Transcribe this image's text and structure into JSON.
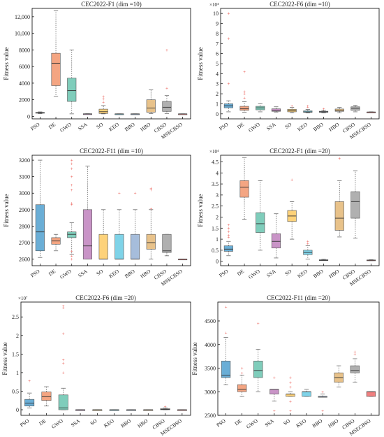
{
  "colors": {
    "PSO": "#6aaed6",
    "DE": "#f4a582",
    "GWO": "#7fcdbb",
    "SSA": "#c994c7",
    "SO": "#fdd27a",
    "KEO": "#7fd3e8",
    "BBO": "#a6bddb",
    "HBO": "#e8c28a",
    "CBSO": "#b0b0b0",
    "MSECBSO": "#f08080",
    "outlier": "#e8453c",
    "median": "#333333"
  },
  "chart_data": [
    {
      "type": "box",
      "title": "CEC2022-F1 (dim =10)",
      "ylabel": "Fitness value",
      "categories": [
        "PSO",
        "DE",
        "GWO",
        "SSA",
        "SO",
        "KEO",
        "BBO",
        "HBO",
        "CBSO",
        "MSECBSO"
      ],
      "ylim": [
        -300,
        13000
      ],
      "yticks": [
        0,
        2000,
        4000,
        6000,
        8000,
        10000,
        12000
      ],
      "ytick_labels": [
        "0",
        "2000",
        "4000",
        "6000",
        "8000",
        "10,000",
        "12,000"
      ],
      "exponent": "",
      "boxes": [
        {
          "whislo": 330,
          "q1": 380,
          "med": 420,
          "q3": 480,
          "whishi": 540,
          "fliers": []
        },
        {
          "whislo": 2400,
          "q1": 3700,
          "med": 6400,
          "q3": 7600,
          "whishi": 12700,
          "fliers": []
        },
        {
          "whislo": 300,
          "q1": 1800,
          "med": 3100,
          "q3": 4600,
          "whishi": 8000,
          "fliers": []
        },
        {
          "whislo": 290,
          "q1": 300,
          "med": 300,
          "q3": 310,
          "whishi": 320,
          "fliers": []
        },
        {
          "whislo": 300,
          "q1": 350,
          "med": 560,
          "q3": 870,
          "whishi": 1300,
          "fliers": [
            1700,
            2100,
            2400
          ]
        },
        {
          "whislo": 290,
          "q1": 300,
          "med": 300,
          "q3": 300,
          "whishi": 310,
          "fliers": []
        },
        {
          "whislo": 290,
          "q1": 300,
          "med": 300,
          "q3": 300,
          "whishi": 310,
          "fliers": []
        },
        {
          "whislo": 320,
          "q1": 500,
          "med": 1000,
          "q3": 2000,
          "whishi": 3200,
          "fliers": []
        },
        {
          "whislo": 350,
          "q1": 600,
          "med": 1100,
          "q3": 1800,
          "whishi": 2500,
          "fliers": [
            3400,
            8000
          ]
        },
        {
          "whislo": 290,
          "q1": 300,
          "med": 300,
          "q3": 300,
          "whishi": 310,
          "fliers": []
        }
      ]
    },
    {
      "type": "box",
      "title": "CEC2022-F6 (dim =10)",
      "ylabel": "Fitness value",
      "categories": [
        "PSO",
        "DE",
        "GWO",
        "SSA",
        "SO",
        "KEO",
        "BBO",
        "HBO",
        "CBSO",
        "MSECBSO"
      ],
      "ylim": [
        -5000,
        105000
      ],
      "yticks": [
        0,
        10000,
        20000,
        30000,
        40000,
        50000,
        60000,
        70000,
        80000,
        90000,
        100000
      ],
      "ytick_labels": [
        "0",
        "1",
        "2",
        "3",
        "4",
        "5",
        "6",
        "7",
        "8",
        "9",
        "10"
      ],
      "exponent": "×10⁴",
      "boxes": [
        {
          "whislo": 2000,
          "q1": 6000,
          "med": 8000,
          "q3": 10000,
          "whishi": 13000,
          "fliers": [
            30000,
            75000,
            100000
          ]
        },
        {
          "whislo": 1500,
          "q1": 3500,
          "med": 5000,
          "q3": 7500,
          "whishi": 12000,
          "fliers": [
            16000,
            20000,
            22000,
            42000
          ]
        },
        {
          "whislo": 2000,
          "q1": 4000,
          "med": 6000,
          "q3": 7500,
          "whishi": 10000,
          "fliers": []
        },
        {
          "whislo": 1800,
          "q1": 2500,
          "med": 3500,
          "q3": 5000,
          "whishi": 7000,
          "fliers": []
        },
        {
          "whislo": 1200,
          "q1": 2000,
          "med": 3000,
          "q3": 4500,
          "whishi": 6500,
          "fliers": [
            8000
          ]
        },
        {
          "whislo": 900,
          "q1": 1500,
          "med": 2000,
          "q3": 3000,
          "whishi": 4500,
          "fliers": [
            7000,
            8000
          ]
        },
        {
          "whislo": 1000,
          "q1": 1500,
          "med": 2000,
          "q3": 2600,
          "whishi": 3500,
          "fliers": [
            5000
          ]
        },
        {
          "whislo": 1200,
          "q1": 2500,
          "med": 3500,
          "q3": 4800,
          "whishi": 6500,
          "fliers": []
        },
        {
          "whislo": 2000,
          "q1": 3500,
          "med": 5500,
          "q3": 7000,
          "whishi": 8500,
          "fliers": []
        },
        {
          "whislo": 1500,
          "q1": 1800,
          "med": 1800,
          "q3": 1800,
          "whishi": 2000,
          "fliers": []
        }
      ]
    },
    {
      "type": "box",
      "title": "CEC2022-F11 (dim =10)",
      "ylabel": "Fitness value",
      "categories": [
        "PSO",
        "DE",
        "GWO",
        "SSA",
        "SO",
        "KEO",
        "BBO",
        "HBO",
        "CBSO",
        "MSECBSO"
      ],
      "ylim": [
        2560,
        3230
      ],
      "yticks": [
        2600,
        2700,
        2800,
        2900,
        3000,
        3100,
        3200
      ],
      "ytick_labels": [
        "2600",
        "2700",
        "2800",
        "2900",
        "3000",
        "3100",
        "3200"
      ],
      "exponent": "",
      "boxes": [
        {
          "whislo": 2610,
          "q1": 2650,
          "med": 2765,
          "q3": 2930,
          "whishi": 3200,
          "fliers": []
        },
        {
          "whislo": 2650,
          "q1": 2690,
          "med": 2710,
          "q3": 2730,
          "whishi": 2750,
          "fliers": []
        },
        {
          "whislo": 2630,
          "q1": 2730,
          "med": 2750,
          "q3": 2765,
          "whishi": 2820,
          "fliers": [
            2600,
            2620,
            2650,
            2930,
            2940,
            3020,
            3050,
            3100,
            3150,
            3180,
            3200
          ]
        },
        {
          "whislo": 2600,
          "q1": 2600,
          "med": 2680,
          "q3": 2900,
          "whishi": 3165,
          "fliers": []
        },
        {
          "whislo": 2600,
          "q1": 2600,
          "med": 2600,
          "q3": 2750,
          "whishi": 2900,
          "fliers": []
        },
        {
          "whislo": 2600,
          "q1": 2600,
          "med": 2600,
          "q3": 2750,
          "whishi": 2900,
          "fliers": [
            3000
          ]
        },
        {
          "whislo": 2600,
          "q1": 2600,
          "med": 2600,
          "q3": 2750,
          "whishi": 2900,
          "fliers": [
            3000
          ]
        },
        {
          "whislo": 2600,
          "q1": 2660,
          "med": 2700,
          "q3": 2750,
          "whishi": 2900,
          "fliers": [
            2905,
            3020,
            3030
          ]
        },
        {
          "whislo": 2620,
          "q1": 2640,
          "med": 2650,
          "q3": 2750,
          "whishi": 2750,
          "fliers": []
        },
        {
          "whislo": 2600,
          "q1": 2600,
          "med": 2600,
          "q3": 2600,
          "whishi": 2600,
          "fliers": []
        }
      ]
    },
    {
      "type": "box",
      "title": "CEC2022-F1 (dim =20)",
      "ylabel": "Fitness value",
      "categories": [
        "PSO",
        "DE",
        "GWO",
        "SSA",
        "SO",
        "KEO",
        "BBO",
        "HBO",
        "CBSO",
        "MSECBSO"
      ],
      "ylim": [
        -2000,
        48000
      ],
      "yticks": [
        0,
        5000,
        10000,
        15000,
        20000,
        25000,
        30000,
        35000,
        40000,
        45000
      ],
      "ytick_labels": [
        "0",
        "0.5",
        "1",
        "1.5",
        "2",
        "2.5",
        "3",
        "3.5",
        "4",
        "4.5"
      ],
      "exponent": "×10⁴",
      "boxes": [
        {
          "whislo": 2500,
          "q1": 4500,
          "med": 5500,
          "q3": 7000,
          "whishi": 9000,
          "fliers": [
            11000,
            12000,
            13500,
            15000,
            16500
          ]
        },
        {
          "whislo": 19000,
          "q1": 29000,
          "med": 33500,
          "q3": 36500,
          "whishi": 47000,
          "fliers": []
        },
        {
          "whislo": 5000,
          "q1": 13000,
          "med": 17000,
          "q3": 22000,
          "whishi": 36500,
          "fliers": []
        },
        {
          "whislo": 1500,
          "q1": 6000,
          "med": 9000,
          "q3": 12500,
          "whishi": 21500,
          "fliers": []
        },
        {
          "whislo": 10000,
          "q1": 18000,
          "med": 20500,
          "q3": 23000,
          "whishi": 27000,
          "fliers": [
            37000
          ]
        },
        {
          "whislo": 1000,
          "q1": 3000,
          "med": 4000,
          "q3": 5000,
          "whishi": 7000,
          "fliers": [
            8000,
            9000
          ]
        },
        {
          "whislo": 300,
          "q1": 400,
          "med": 500,
          "q3": 700,
          "whishi": 900,
          "fliers": []
        },
        {
          "whislo": 11000,
          "q1": 14000,
          "med": 19500,
          "q3": 27000,
          "whishi": 36500,
          "fliers": [
            46500
          ]
        },
        {
          "whislo": 10500,
          "q1": 19500,
          "med": 27000,
          "q3": 31500,
          "whishi": 41000,
          "fliers": []
        },
        {
          "whislo": 300,
          "q1": 400,
          "med": 500,
          "q3": 600,
          "whishi": 700,
          "fliers": []
        }
      ]
    },
    {
      "type": "box",
      "title": "CEC2022-F6 (dim =20)",
      "ylabel": "Fitness value",
      "categories": [
        "PSO",
        "DE",
        "GWO",
        "SSA",
        "SO",
        "KEO",
        "BBO",
        "HBO",
        "CBSO",
        "MSECBSO"
      ],
      "ylim": [
        -1500000,
        29000000
      ],
      "yticks": [
        0,
        5000000,
        10000000,
        15000000,
        20000000,
        25000000
      ],
      "ytick_labels": [
        "0",
        "0.5",
        "1",
        "1.5",
        "2",
        "2.5"
      ],
      "exponent": "×10⁷",
      "boxes": [
        {
          "whislo": 500000,
          "q1": 1000000,
          "med": 1800000,
          "q3": 2800000,
          "whishi": 4500000,
          "fliers": [
            7800000
          ]
        },
        {
          "whislo": 1000000,
          "q1": 2500000,
          "med": 3500000,
          "q3": 4800000,
          "whishi": 6200000,
          "fliers": []
        },
        {
          "whislo": 0,
          "q1": 0,
          "med": 500000,
          "q3": 4000000,
          "whishi": 5800000,
          "fliers": [
            10000000,
            12500000,
            13500000,
            20500000,
            27500000,
            28000000
          ]
        },
        {
          "whislo": 0,
          "q1": 0,
          "med": 0,
          "q3": 0,
          "whishi": 0,
          "fliers": []
        },
        {
          "whislo": 0,
          "q1": 0,
          "med": 0,
          "q3": 0,
          "whishi": 0,
          "fliers": []
        },
        {
          "whislo": 0,
          "q1": 0,
          "med": 0,
          "q3": 0,
          "whishi": 0,
          "fliers": []
        },
        {
          "whislo": 0,
          "q1": 0,
          "med": 0,
          "q3": 0,
          "whishi": 0,
          "fliers": []
        },
        {
          "whislo": 0,
          "q1": 0,
          "med": 0,
          "q3": 0,
          "whishi": 0,
          "fliers": []
        },
        {
          "whislo": 0,
          "q1": 0,
          "med": 100000,
          "q3": 300000,
          "whishi": 500000,
          "fliers": [
            900000
          ]
        },
        {
          "whislo": 0,
          "q1": 0,
          "med": 0,
          "q3": 0,
          "whishi": 0,
          "fliers": []
        }
      ]
    },
    {
      "type": "box",
      "title": "CEC2022-F11 (dim =20)",
      "ylabel": "Fitness value",
      "categories": [
        "PSO",
        "DE",
        "GWO",
        "SSA",
        "SO",
        "KEO",
        "BBO",
        "HBO",
        "CBSO",
        "MSECBSO"
      ],
      "ylim": [
        2500,
        4900
      ],
      "yticks": [
        2500,
        3000,
        3500,
        4000,
        4500
      ],
      "ytick_labels": [
        "2500",
        "3000",
        "3500",
        "4000",
        "4500"
      ],
      "exponent": "",
      "boxes": [
        {
          "whislo": 3150,
          "q1": 3300,
          "med": 3350,
          "q3": 3650,
          "whishi": 4150,
          "fliers": [
            4250,
            4800
          ]
        },
        {
          "whislo": 2900,
          "q1": 3000,
          "med": 3050,
          "q3": 3150,
          "whishi": 3350,
          "fliers": [
            3400,
            3500
          ]
        },
        {
          "whislo": 3000,
          "q1": 3300,
          "med": 3450,
          "q3": 3650,
          "whishi": 3900,
          "fliers": [
            4450
          ]
        },
        {
          "whislo": 2800,
          "q1": 2950,
          "med": 3050,
          "q3": 3050,
          "whishi": 3050,
          "fliers": [
            2600,
            3300
          ]
        },
        {
          "whislo": 2900,
          "q1": 2900,
          "med": 2950,
          "q3": 2950,
          "whishi": 3000,
          "fliers": [
            2600,
            2800,
            3100,
            3200,
            3300
          ]
        },
        {
          "whislo": 2900,
          "q1": 2900,
          "med": 3000,
          "q3": 3000,
          "whishi": 3050,
          "fliers": []
        },
        {
          "whislo": 2900,
          "q1": 2900,
          "med": 2900,
          "q3": 2900,
          "whishi": 2950,
          "fliers": [
            2600,
            3000
          ]
        },
        {
          "whislo": 3100,
          "q1": 3200,
          "med": 3300,
          "q3": 3400,
          "whishi": 3550,
          "fliers": []
        },
        {
          "whislo": 3200,
          "q1": 3400,
          "med": 3450,
          "q3": 3550,
          "whishi": 3700,
          "fliers": [
            3800,
            3850
          ]
        },
        {
          "whislo": 2900,
          "q1": 2900,
          "med": 3000,
          "q3": 3000,
          "whishi": 3000,
          "fliers": []
        }
      ]
    }
  ]
}
